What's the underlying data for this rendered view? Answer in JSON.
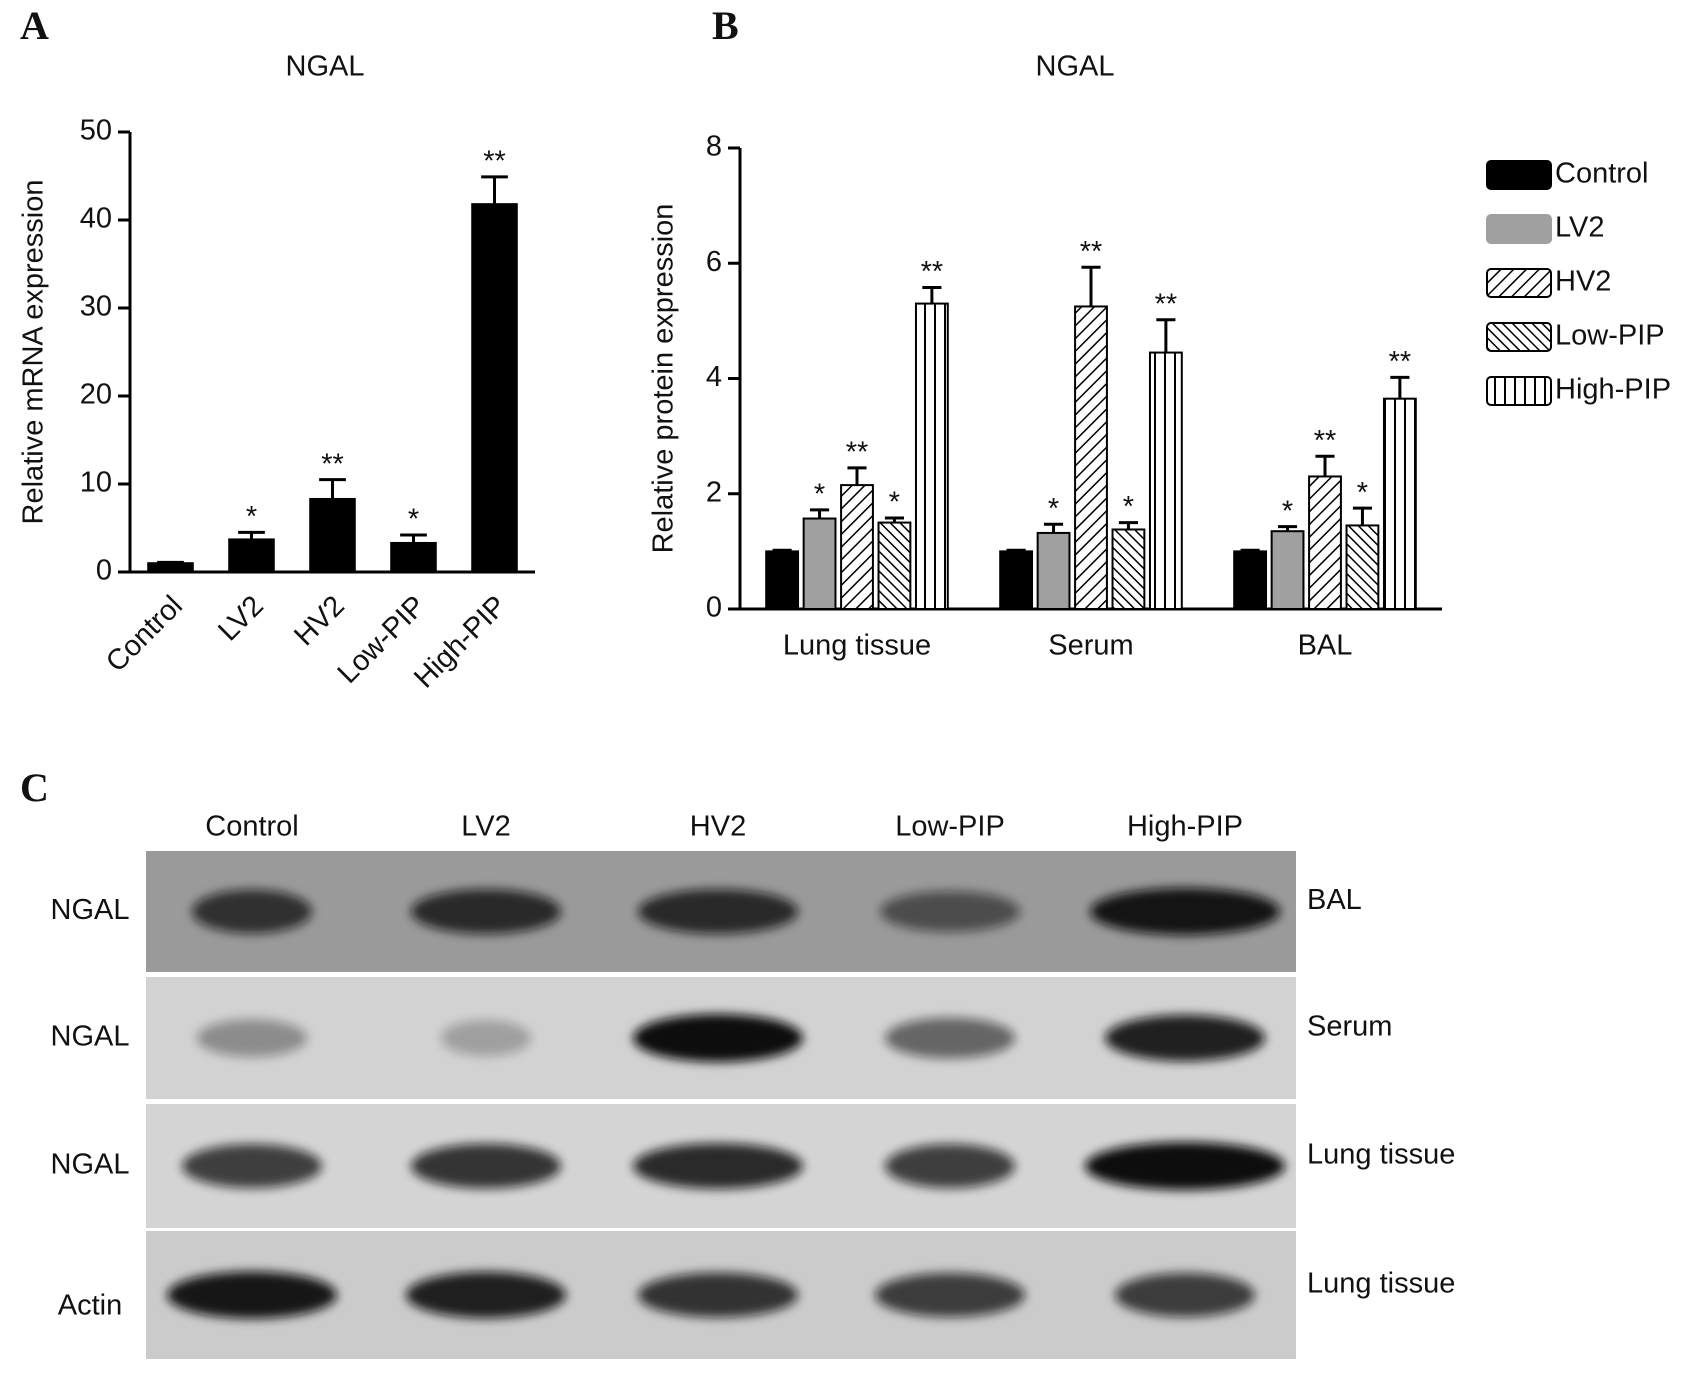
{
  "chart_data": [
    {
      "type": "bar",
      "panel_label": "A",
      "title": "NGAL",
      "y_label": "Relative mRNA expression",
      "categories": [
        "Control",
        "LV2",
        "HV2",
        "Low-PIP",
        "High-PIP"
      ],
      "values": [
        1,
        3.7,
        8.3,
        3.3,
        41.8
      ],
      "errors": [
        0.1,
        0.8,
        2.2,
        0.9,
        3.1
      ],
      "significance": [
        null,
        "*",
        "**",
        "*",
        "**"
      ],
      "color": "#000000",
      "ylim": [
        0,
        50
      ],
      "yticks": [
        0,
        10,
        20,
        30,
        40,
        50
      ]
    },
    {
      "type": "bar",
      "panel_label": "B",
      "title": "NGAL",
      "y_label": "Relative protein expression",
      "categories": [
        "Lung tissue",
        "Serum",
        "BAL"
      ],
      "series": [
        {
          "name": "Control",
          "color": "#000000",
          "pattern": "solid",
          "values": [
            1,
            1,
            1
          ],
          "errors": [
            0.02,
            0.02,
            0.02
          ],
          "significance": [
            null,
            null,
            null
          ]
        },
        {
          "name": "LV2",
          "color": "#a0a0a0",
          "pattern": "solid",
          "values": [
            1.57,
            1.32,
            1.35
          ],
          "errors": [
            0.15,
            0.15,
            0.08
          ],
          "significance": [
            "*",
            "*",
            "*"
          ]
        },
        {
          "name": "HV2",
          "color": "#000000",
          "pattern": "diagonal",
          "values": [
            2.15,
            5.25,
            2.3
          ],
          "errors": [
            0.3,
            0.68,
            0.35
          ],
          "significance": [
            "**",
            "**",
            "**"
          ]
        },
        {
          "name": "Low-PIP",
          "color": "#000000",
          "pattern": "diagonal-back",
          "values": [
            1.5,
            1.38,
            1.45
          ],
          "errors": [
            0.08,
            0.12,
            0.3
          ],
          "significance": [
            "*",
            "*",
            "*"
          ]
        },
        {
          "name": "High-PIP",
          "color": "#000000",
          "pattern": "vertical",
          "values": [
            5.3,
            4.45,
            3.65
          ],
          "errors": [
            0.28,
            0.57,
            0.37
          ],
          "significance": [
            "**",
            "**",
            "**"
          ]
        }
      ],
      "ylim": [
        0,
        8
      ],
      "yticks": [
        0,
        2,
        4,
        6,
        8
      ],
      "legend": "right"
    }
  ],
  "blot": {
    "panel_label": "C",
    "lanes": [
      "Control",
      "LV2",
      "HV2",
      "Low-PIP",
      "High-PIP"
    ],
    "rows": [
      {
        "protein": "NGAL",
        "sample": "BAL"
      },
      {
        "protein": "NGAL",
        "sample": "Serum"
      },
      {
        "protein": "NGAL",
        "sample": "Lung tissue"
      },
      {
        "protein": "Actin",
        "sample": "Lung tissue"
      }
    ]
  }
}
